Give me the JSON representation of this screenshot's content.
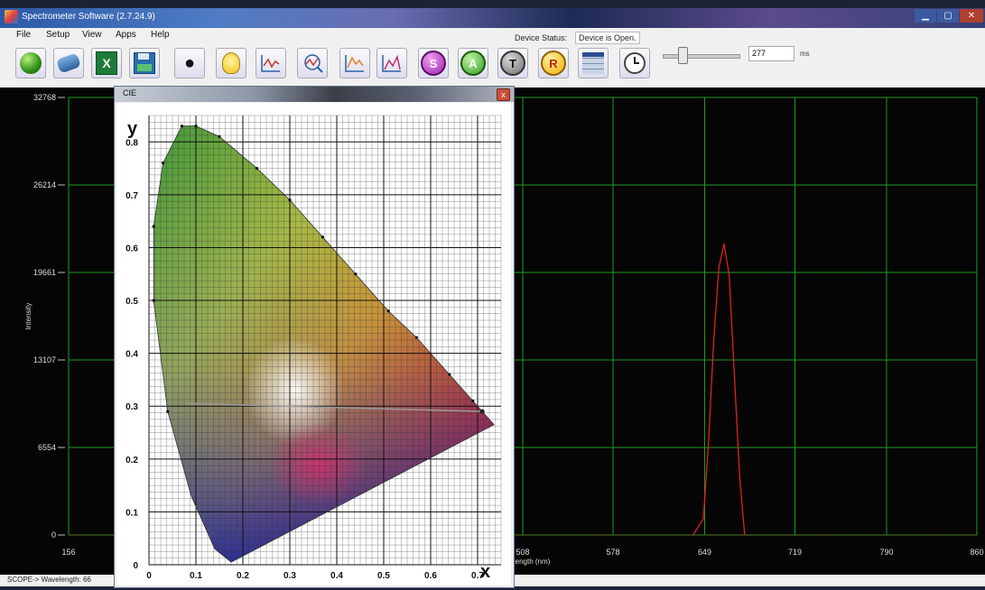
{
  "window": {
    "title": "Spectrometer Software (2.7.24.9)"
  },
  "menu": [
    "File",
    "Setup",
    "View",
    "Apps",
    "Help"
  ],
  "device": {
    "status_label": "Device Status:",
    "status_value": "Device is Open."
  },
  "toolbar": {
    "buttons": [
      {
        "name": "start-button",
        "icon": "green-ball-icon"
      },
      {
        "name": "eraser-button",
        "icon": "eraser-icon"
      },
      {
        "name": "export-excel-button",
        "icon": "excel-icon"
      },
      {
        "name": "save-button",
        "icon": "floppy-icon"
      },
      {
        "name": "dark-button",
        "icon": "bulb-off-icon"
      },
      {
        "name": "light-button",
        "icon": "bulb-on-icon"
      },
      {
        "name": "scope-mode-button",
        "icon": "line-chart-icon"
      },
      {
        "name": "zoom-chart-button",
        "icon": "zoom-chart-icon"
      },
      {
        "name": "overlay-chart-button",
        "icon": "line-chart-icon"
      },
      {
        "name": "peak-chart-button",
        "icon": "area-chart-icon"
      },
      {
        "name": "s-mode-button",
        "label": "S"
      },
      {
        "name": "a-mode-button",
        "label": "A"
      },
      {
        "name": "t-mode-button",
        "label": "T"
      },
      {
        "name": "r-mode-button",
        "label": "R"
      },
      {
        "name": "table-button",
        "icon": "table-icon"
      },
      {
        "name": "timer-button",
        "icon": "alarm-clock-icon"
      }
    ],
    "integration_value": "277",
    "integration_unit": "ms",
    "integration_fraction": 0.25
  },
  "status_bar": {
    "text": "SCOPE-> Wavelength: 66"
  },
  "cie": {
    "title": "CIE",
    "y_label": "y",
    "x_label": "x",
    "close": "x"
  },
  "colors": {
    "grid": "#1f9b1f",
    "trace": "#e02020",
    "plot_bg": "#050505"
  },
  "chart_data": [
    {
      "type": "line",
      "ylabel": "Intensity",
      "xlabel": "Wavelength (nm)",
      "yticks": [
        "32768",
        "26214",
        "19661",
        "13107",
        "6554",
        "0"
      ],
      "xticks": [
        "156",
        "508",
        "578",
        "649",
        "719",
        "790",
        "860"
      ],
      "ylim": [
        0,
        32768
      ],
      "xlim": [
        156,
        860
      ],
      "grid": true,
      "series": [
        {
          "x": [
            640,
            648,
            652,
            656,
            660,
            664,
            668,
            672,
            676,
            680
          ],
          "y": [
            0,
            1200,
            7000,
            14500,
            20000,
            21800,
            19500,
            12000,
            4500,
            0
          ]
        }
      ]
    },
    {
      "type": "scatter",
      "yticks": [
        "0.8",
        "0.7",
        "0.6",
        "0.5",
        "0.4",
        "0.3",
        "0.2",
        "0.1",
        "0"
      ],
      "xticks": [
        "0",
        "0.1",
        "0.2",
        "0.3",
        "0.4",
        "0.5",
        "0.6",
        "0.7"
      ],
      "xlim": [
        0,
        0.75
      ],
      "ylim": [
        0,
        0.85
      ],
      "grid": true,
      "locus": [
        [
          0.175,
          0.005
        ],
        [
          0.14,
          0.03
        ],
        [
          0.09,
          0.13
        ],
        [
          0.04,
          0.29
        ],
        [
          0.01,
          0.5
        ],
        [
          0.01,
          0.64
        ],
        [
          0.03,
          0.76
        ],
        [
          0.07,
          0.83
        ],
        [
          0.1,
          0.83
        ],
        [
          0.15,
          0.81
        ],
        [
          0.23,
          0.75
        ],
        [
          0.3,
          0.69
        ],
        [
          0.37,
          0.62
        ],
        [
          0.44,
          0.55
        ],
        [
          0.51,
          0.48
        ],
        [
          0.57,
          0.43
        ],
        [
          0.64,
          0.36
        ],
        [
          0.69,
          0.31
        ],
        [
          0.735,
          0.265
        ]
      ],
      "measured_point": [
        0.71,
        0.29
      ]
    }
  ]
}
